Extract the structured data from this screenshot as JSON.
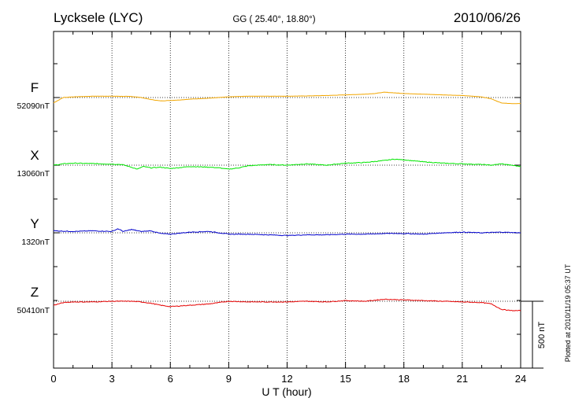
{
  "header": {
    "station": "Lycksele (LYC)",
    "coords": "GG ( 25.40°,  18.80°)",
    "date": "2010/06/26"
  },
  "footer_note": "Plotted at 2010/11/19 05:37 UT",
  "chart_data": {
    "type": "line",
    "title": "Lycksele (LYC)",
    "xlabel": "U T (hour)",
    "xlim": [
      0,
      24
    ],
    "x_ticks": [
      0,
      3,
      6,
      9,
      12,
      15,
      18,
      21,
      24
    ],
    "x_tick_labels": [
      "0",
      "3",
      "6",
      "9",
      "12",
      "15",
      "18",
      "21",
      "24"
    ],
    "scale_bar": {
      "value_nT": 500,
      "label": "500 nT"
    },
    "grid": "vertical dotted at each 3 h; horizontal dotted at each baseline",
    "series": [
      {
        "name": "F",
        "baseline_label": "52090nT",
        "baseline_nT": 52090,
        "color": "#f2a600",
        "x": [
          0,
          0.5,
          1,
          2,
          3,
          4,
          4.5,
          5,
          5.5,
          6,
          6.5,
          7,
          8,
          9,
          10,
          11,
          12,
          13,
          14,
          15,
          16,
          16.5,
          17,
          17.5,
          18,
          19,
          20,
          21,
          22,
          22.5,
          23,
          23.5,
          24
        ],
        "offset_nT": [
          -40,
          0,
          5,
          10,
          10,
          8,
          0,
          -15,
          -25,
          -22,
          -18,
          -12,
          -5,
          5,
          10,
          10,
          10,
          12,
          15,
          20,
          25,
          30,
          40,
          35,
          30,
          25,
          20,
          15,
          5,
          -10,
          -40,
          -45,
          -45
        ]
      },
      {
        "name": "X",
        "baseline_label": "13060nT",
        "baseline_nT": 13060,
        "color": "#00e600",
        "x": [
          0,
          0.5,
          1,
          2,
          3,
          3.5,
          4,
          4.3,
          4.6,
          5,
          5.5,
          6,
          7,
          8,
          8.5,
          9,
          9.5,
          10,
          11,
          12,
          13,
          14,
          15,
          16,
          17,
          17.5,
          18,
          19,
          20,
          21,
          22,
          22.5,
          23,
          23.5,
          24
        ],
        "offset_nT": [
          0,
          10,
          15,
          12,
          8,
          5,
          -15,
          -30,
          -10,
          -20,
          -15,
          -25,
          -10,
          -15,
          -20,
          -30,
          -20,
          -5,
          5,
          0,
          10,
          0,
          15,
          20,
          35,
          45,
          40,
          25,
          15,
          10,
          5,
          0,
          10,
          0,
          -10
        ]
      },
      {
        "name": "Y",
        "baseline_label": "1320nT",
        "baseline_nT": 1320,
        "color": "#0000cc",
        "x": [
          0,
          1,
          2,
          3,
          3.3,
          3.6,
          4,
          4.5,
          5,
          5.5,
          6,
          7,
          8,
          9,
          10,
          11,
          12,
          13,
          14,
          15,
          16,
          17,
          18,
          19,
          20,
          21,
          22,
          23,
          24
        ],
        "offset_nT": [
          15,
          10,
          15,
          10,
          30,
          10,
          25,
          10,
          15,
          -5,
          -10,
          5,
          10,
          -10,
          -10,
          -15,
          -20,
          -15,
          -15,
          -10,
          -10,
          -5,
          -5,
          -10,
          0,
          5,
          0,
          5,
          0
        ]
      },
      {
        "name": "Z",
        "baseline_label": "50410nT",
        "baseline_nT": 50410,
        "color": "#e60000",
        "x": [
          0,
          0.5,
          1,
          2,
          3,
          4,
          4.5,
          5,
          5.5,
          6,
          6.5,
          7,
          8,
          9,
          10,
          11,
          12,
          13,
          14,
          15,
          16,
          17,
          18,
          19,
          20,
          21,
          22,
          22.5,
          23,
          23.5,
          24
        ],
        "offset_nT": [
          -30,
          -10,
          -5,
          -5,
          0,
          0,
          -5,
          -15,
          -30,
          -40,
          -35,
          -30,
          -20,
          0,
          -5,
          -5,
          -5,
          0,
          -5,
          5,
          0,
          15,
          10,
          5,
          0,
          -5,
          -10,
          -20,
          -60,
          -70,
          -70
        ]
      }
    ]
  }
}
